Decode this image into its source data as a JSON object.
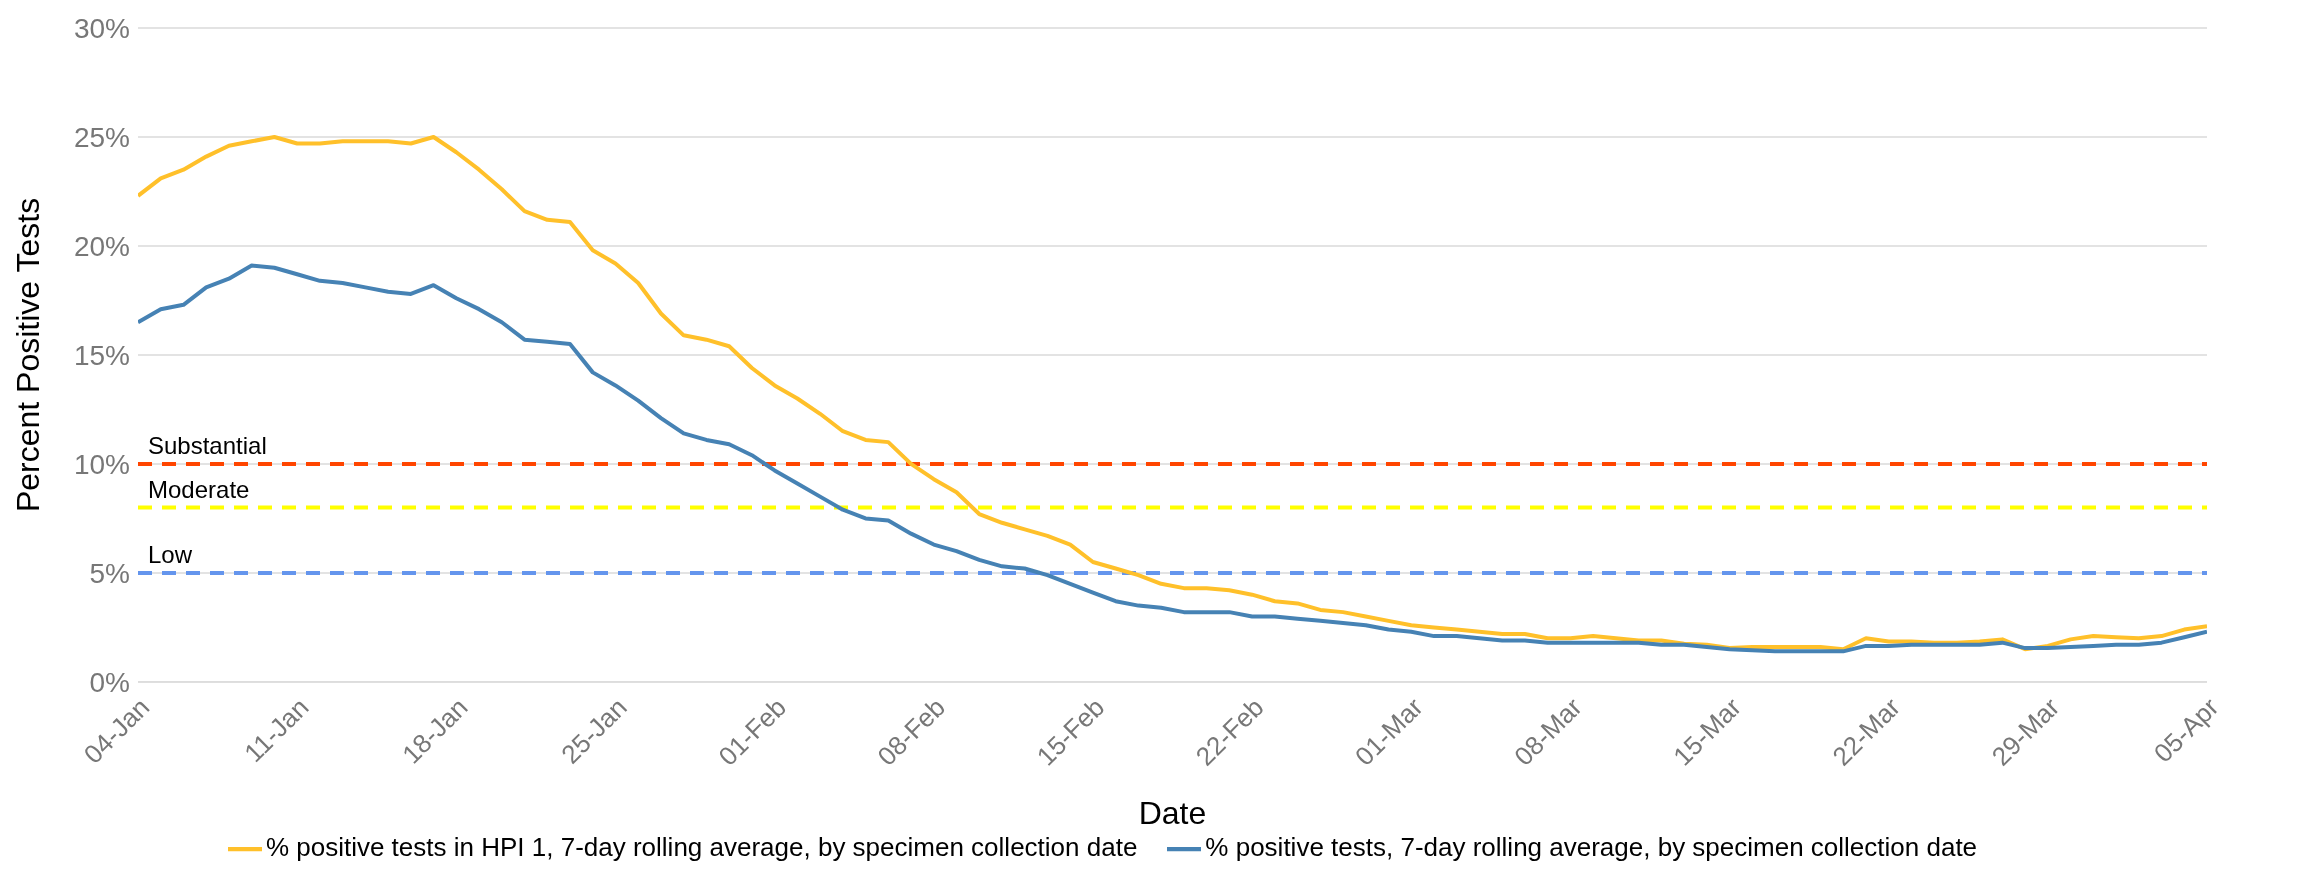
{
  "chart_data": {
    "type": "line",
    "xlabel": "Date",
    "ylabel": "Percent Positive Tests",
    "x": [
      "--01-04",
      "--01-05",
      "--01-06",
      "--01-07",
      "--01-08",
      "--01-09",
      "--01-10",
      "--01-11",
      "--01-12",
      "--01-13",
      "--01-14",
      "--01-15",
      "--01-16",
      "--01-17",
      "--01-18",
      "--01-19",
      "--01-20",
      "--01-21",
      "--01-22",
      "--01-23",
      "--01-24",
      "--01-25",
      "--01-26",
      "--01-27",
      "--01-28",
      "--01-29",
      "--01-30",
      "--01-31",
      "--02-01",
      "--02-02",
      "--02-03",
      "--02-04",
      "--02-05",
      "--02-06",
      "--02-07",
      "--02-08",
      "--02-09",
      "--02-10",
      "--02-11",
      "--02-12",
      "--02-13",
      "--02-14",
      "--02-15",
      "--02-16",
      "--02-17",
      "--02-18",
      "--02-19",
      "--02-20",
      "--02-21",
      "--02-22",
      "--02-23",
      "--02-24",
      "--02-25",
      "--02-26",
      "--02-27",
      "--02-28",
      "--03-01",
      "--03-02",
      "--03-03",
      "--03-04",
      "--03-05",
      "--03-06",
      "--03-07",
      "--03-08",
      "--03-09",
      "--03-10",
      "--03-11",
      "--03-12",
      "--03-13",
      "--03-14",
      "--03-15",
      "--03-16",
      "--03-17",
      "--03-18",
      "--03-19",
      "--03-20",
      "--03-21",
      "--03-22",
      "--03-23",
      "--03-24",
      "--03-25",
      "--03-26",
      "--03-27",
      "--03-28",
      "--03-29",
      "--03-30",
      "--03-31",
      "--04-01",
      "--04-02",
      "--04-03",
      "--04-04",
      "--04-05"
    ],
    "series": [
      {
        "name": "% positive tests in HPI 1, 7-day rolling average, by specimen collection date",
        "color": "#ffc02a",
        "values": [
          22.3,
          23.1,
          23.5,
          24.1,
          24.6,
          24.8,
          25.0,
          24.7,
          24.7,
          24.8,
          24.8,
          24.8,
          24.7,
          25.0,
          24.3,
          23.5,
          22.6,
          21.6,
          21.2,
          21.1,
          19.8,
          19.2,
          18.3,
          16.9,
          15.9,
          15.7,
          15.4,
          14.4,
          13.6,
          13.0,
          12.3,
          11.5,
          11.1,
          11.0,
          10.0,
          9.3,
          8.7,
          7.7,
          7.3,
          7.0,
          6.7,
          6.3,
          5.5,
          5.2,
          4.9,
          4.5,
          4.3,
          4.3,
          4.2,
          4.0,
          3.7,
          3.6,
          3.3,
          3.2,
          3.0,
          2.8,
          2.6,
          2.5,
          2.4,
          2.3,
          2.2,
          2.2,
          2.0,
          2.0,
          2.1,
          2.0,
          1.9,
          1.9,
          1.75,
          1.7,
          1.55,
          1.6,
          1.6,
          1.6,
          1.6,
          1.5,
          2.0,
          1.85,
          1.85,
          1.8,
          1.8,
          1.85,
          1.95,
          1.5,
          1.65,
          1.95,
          2.1,
          2.05,
          2.0,
          2.1,
          2.4,
          2.55
        ]
      },
      {
        "name": "% positive tests, 7-day rolling average, by specimen collection date",
        "color": "#4682b4",
        "values": [
          16.5,
          17.1,
          17.3,
          18.1,
          18.5,
          19.1,
          19.0,
          18.7,
          18.4,
          18.3,
          18.1,
          17.9,
          17.8,
          18.2,
          17.6,
          17.1,
          16.5,
          15.7,
          15.6,
          15.5,
          14.2,
          13.6,
          12.9,
          12.1,
          11.4,
          11.1,
          10.9,
          10.4,
          9.7,
          9.1,
          8.5,
          7.9,
          7.5,
          7.4,
          6.8,
          6.3,
          6.0,
          5.6,
          5.3,
          5.2,
          4.9,
          4.5,
          4.1,
          3.7,
          3.5,
          3.4,
          3.2,
          3.2,
          3.2,
          3.0,
          3.0,
          2.9,
          2.8,
          2.7,
          2.6,
          2.4,
          2.3,
          2.1,
          2.1,
          2.0,
          1.9,
          1.9,
          1.8,
          1.8,
          1.8,
          1.8,
          1.8,
          1.7,
          1.7,
          1.6,
          1.5,
          1.45,
          1.4,
          1.4,
          1.4,
          1.4,
          1.65,
          1.65,
          1.7,
          1.7,
          1.7,
          1.7,
          1.8,
          1.55,
          1.55,
          1.6,
          1.65,
          1.7,
          1.7,
          1.8,
          2.05,
          2.3
        ]
      }
    ],
    "xlim": [
      "--01-04",
      "--04-05"
    ],
    "xticks": [
      {
        "value": "--01-04",
        "label": "04-Jan"
      },
      {
        "value": "--01-11",
        "label": "11-Jan"
      },
      {
        "value": "--01-18",
        "label": "18-Jan"
      },
      {
        "value": "--01-25",
        "label": "25-Jan"
      },
      {
        "value": "--02-01",
        "label": "01-Feb"
      },
      {
        "value": "--02-08",
        "label": "08-Feb"
      },
      {
        "value": "--02-15",
        "label": "15-Feb"
      },
      {
        "value": "--02-22",
        "label": "22-Feb"
      },
      {
        "value": "--03-01",
        "label": "01-Mar"
      },
      {
        "value": "--03-08",
        "label": "08-Mar"
      },
      {
        "value": "--03-15",
        "label": "15-Mar"
      },
      {
        "value": "--03-22",
        "label": "22-Mar"
      },
      {
        "value": "--03-29",
        "label": "29-Mar"
      },
      {
        "value": "--04-05",
        "label": "05-Apr"
      }
    ],
    "ylim": [
      0,
      30
    ],
    "yticks": [
      {
        "value": 0,
        "label": "0%"
      },
      {
        "value": 5,
        "label": "5%"
      },
      {
        "value": 10,
        "label": "10%"
      },
      {
        "value": 15,
        "label": "15%"
      },
      {
        "value": 20,
        "label": "20%"
      },
      {
        "value": 25,
        "label": "25%"
      },
      {
        "value": 30,
        "label": "30%"
      }
    ],
    "ref_lines": [
      {
        "axis": "y",
        "value": 10,
        "label": "Substantial",
        "color": "#ff4500",
        "line_style": "dashed"
      },
      {
        "axis": "y",
        "value": 8,
        "label": "Moderate",
        "color": "#ffff00",
        "line_style": "dashed"
      },
      {
        "axis": "y",
        "value": 5,
        "label": "Low",
        "color": "#6495ed",
        "line_style": "dashed"
      }
    ],
    "grid": "y",
    "legend": "bottom",
    "line_style": "solid"
  }
}
